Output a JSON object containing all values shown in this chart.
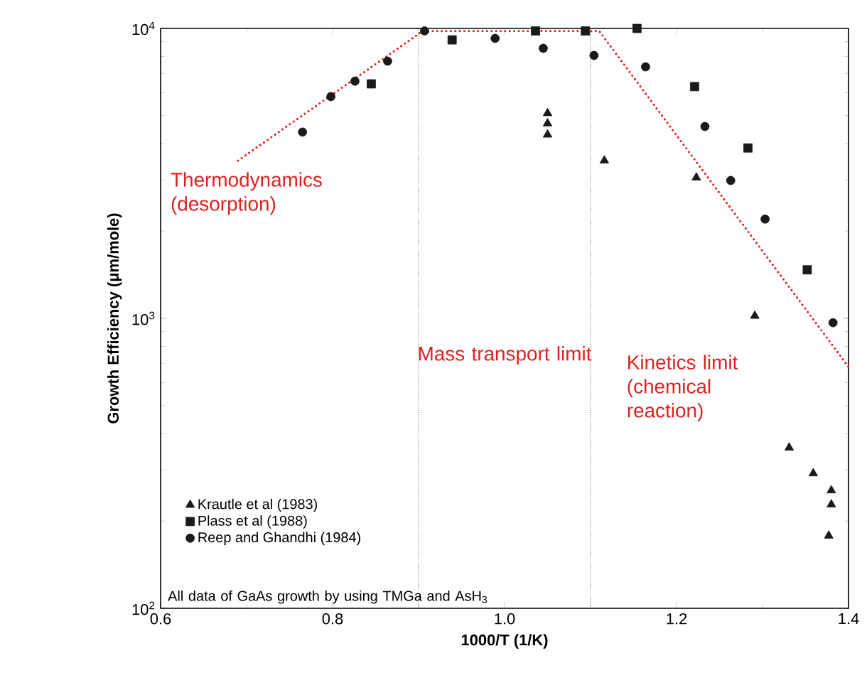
{
  "chart_data": {
    "type": "scatter",
    "xlabel": "1000/T (1/K)",
    "ylabel": "Growth  Efficiency  (μm/mole)",
    "xlim": [
      0.6,
      1.4
    ],
    "xticks": [
      0.6,
      0.8,
      {
        "value": 1.0,
        "label": "1.0"
      },
      1.2,
      1.4
    ],
    "ylim": [
      100,
      10000
    ],
    "yticks": [
      {
        "value": 100,
        "label": "10$^{2}$"
      },
      {
        "value": 1000,
        "label": "10$^{3}$"
      },
      {
        "value": 10000,
        "label": "10$^{4}$"
      }
    ],
    "log": "y",
    "legend": "bottom left",
    "grid": false,
    "series": [
      {
        "name": "Krautle et al (1983)",
        "marker": "triangle",
        "color": "#1a1a1a",
        "x": [
          1.05,
          1.05,
          1.05,
          1.116,
          1.223,
          1.291,
          1.331,
          1.359,
          1.38,
          1.38,
          1.377
        ],
        "values": [
          5100,
          4700,
          4300,
          3500,
          3060,
          1020,
          358,
          292,
          255,
          228,
          178
        ]
      },
      {
        "name": "Plass et al (1988)",
        "marker": "square",
        "color": "#1a1a1a",
        "x": [
          0.845,
          0.939,
          1.036,
          1.094,
          1.154,
          1.221,
          1.283,
          1.352
        ],
        "values": [
          6440,
          9130,
          9800,
          9800,
          10000,
          6300,
          3870,
          1470
        ]
      },
      {
        "name": "Reep and Ghandhi (1984)",
        "marker": "circle",
        "color": "#1a1a1a",
        "x": [
          0.765,
          0.798,
          0.826,
          0.864,
          0.907,
          0.989,
          1.045,
          1.104,
          1.164,
          1.233,
          1.263,
          1.303,
          1.382
        ],
        "values": [
          4390,
          5820,
          6580,
          7710,
          9800,
          9240,
          8540,
          8070,
          7370,
          4590,
          2990,
          2200,
          966
        ]
      },
      {
        "type": "line",
        "marker": "none",
        "line_style": "dotted",
        "color": "#dd2222",
        "x": [
          0.69,
          0.905,
          1.11,
          1.4
        ],
        "values": [
          3500,
          9800,
          9800,
          680
        ]
      }
    ],
    "ref_lines": [
      {
        "axis": "x",
        "value": 0.9,
        "color": "#555555",
        "line_style": "dotted"
      },
      {
        "axis": "x",
        "value": 1.1,
        "color": "#555555",
        "line_style": "dotted"
      }
    ],
    "annotations": [
      "Thermodynamics (desorption)",
      "Mass transport limit",
      "Kinetics limit (chemical reaction)",
      "All data of GaAs growth by using TMGa and AsH$_{3}$"
    ]
  }
}
